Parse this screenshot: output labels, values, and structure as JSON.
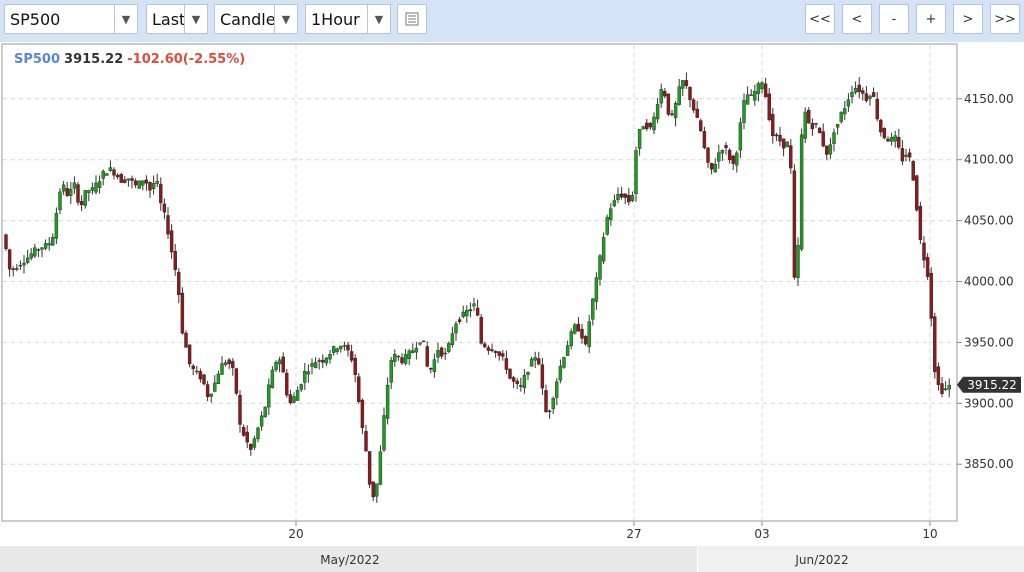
{
  "toolbar": {
    "symbol": "SP500",
    "price_type": "Last",
    "chart_style": "Candle",
    "interval": "1Hour",
    "list_icon": "list-icon",
    "nav": {
      "first": "<<",
      "prev": "<",
      "zoom_out": "-",
      "zoom_in": "+",
      "next": ">",
      "last": ">>"
    }
  },
  "header": {
    "symbol": "SP500",
    "last": "3915.22",
    "change": "-102.60(-2.55%)"
  },
  "colors": {
    "up": "#1e9e1e",
    "down": "#8b1a1a",
    "symbol": "#5a86d8",
    "change": "#e04b3a",
    "grid": "#d6d6d6",
    "band": "#e8e8e8"
  },
  "chart_data": {
    "type": "candlestick",
    "x_ticks": [
      "20",
      "27",
      "03",
      "10"
    ],
    "x_periods": [
      "May/2022",
      "Jun/2022"
    ],
    "y_ticks": [
      "3850.00",
      "3900.00",
      "3950.00",
      "4000.00",
      "4050.00",
      "4100.00",
      "4150.00"
    ],
    "y_tick_values": [
      3850,
      3900,
      3950,
      4000,
      4050,
      4100,
      4150
    ],
    "ylim": [
      3805,
      4195
    ],
    "last_price_label": "3915.22",
    "last_price": 3915.22,
    "path": [
      [
        0,
        4035
      ],
      [
        6,
        4040
      ],
      [
        10,
        4010
      ],
      [
        16,
        4010
      ],
      [
        22,
        4015
      ],
      [
        30,
        4020
      ],
      [
        36,
        4025
      ],
      [
        42,
        4028
      ],
      [
        50,
        4030
      ],
      [
        56,
        4040
      ],
      [
        60,
        4070
      ],
      [
        64,
        4080
      ],
      [
        70,
        4070
      ],
      [
        76,
        4080
      ],
      [
        82,
        4060
      ],
      [
        88,
        4075
      ],
      [
        94,
        4075
      ],
      [
        100,
        4082
      ],
      [
        106,
        4090
      ],
      [
        112,
        4092
      ],
      [
        118,
        4088
      ],
      [
        124,
        4082
      ],
      [
        130,
        4085
      ],
      [
        138,
        4078
      ],
      [
        146,
        4085
      ],
      [
        152,
        4075
      ],
      [
        158,
        4085
      ],
      [
        162,
        4065
      ],
      [
        168,
        4050
      ],
      [
        172,
        4030
      ],
      [
        176,
        4015
      ],
      [
        180,
        3995
      ],
      [
        184,
        3960
      ],
      [
        188,
        3945
      ],
      [
        192,
        3930
      ],
      [
        198,
        3925
      ],
      [
        204,
        3920
      ],
      [
        210,
        3905
      ],
      [
        216,
        3915
      ],
      [
        222,
        3930
      ],
      [
        228,
        3935
      ],
      [
        234,
        3930
      ],
      [
        238,
        3910
      ],
      [
        242,
        3880
      ],
      [
        248,
        3870
      ],
      [
        252,
        3860
      ],
      [
        258,
        3875
      ],
      [
        264,
        3890
      ],
      [
        268,
        3900
      ],
      [
        272,
        3920
      ],
      [
        276,
        3930
      ],
      [
        280,
        3940
      ],
      [
        284,
        3930
      ],
      [
        288,
        3910
      ],
      [
        292,
        3900
      ],
      [
        296,
        3905
      ],
      [
        302,
        3915
      ],
      [
        306,
        3925
      ],
      [
        312,
        3930
      ],
      [
        318,
        3935
      ],
      [
        324,
        3935
      ],
      [
        330,
        3940
      ],
      [
        336,
        3945
      ],
      [
        342,
        3948
      ],
      [
        348,
        3945
      ],
      [
        352,
        3940
      ],
      [
        356,
        3930
      ],
      [
        360,
        3905
      ],
      [
        364,
        3880
      ],
      [
        368,
        3860
      ],
      [
        372,
        3830
      ],
      [
        376,
        3822
      ],
      [
        380,
        3840
      ],
      [
        384,
        3875
      ],
      [
        388,
        3905
      ],
      [
        392,
        3935
      ],
      [
        398,
        3940
      ],
      [
        404,
        3935
      ],
      [
        410,
        3940
      ],
      [
        416,
        3945
      ],
      [
        420,
        3950
      ],
      [
        424,
        3955
      ],
      [
        430,
        3925
      ],
      [
        434,
        3930
      ],
      [
        440,
        3945
      ],
      [
        446,
        3938
      ],
      [
        452,
        3950
      ],
      [
        456,
        3965
      ],
      [
        462,
        3970
      ],
      [
        468,
        3975
      ],
      [
        472,
        3978
      ],
      [
        478,
        3982
      ],
      [
        482,
        3950
      ],
      [
        486,
        3948
      ],
      [
        490,
        3945
      ],
      [
        496,
        3945
      ],
      [
        500,
        3940
      ],
      [
        506,
        3935
      ],
      [
        512,
        3920
      ],
      [
        518,
        3915
      ],
      [
        522,
        3912
      ],
      [
        528,
        3925
      ],
      [
        534,
        3935
      ],
      [
        538,
        3940
      ],
      [
        542,
        3930
      ],
      [
        546,
        3895
      ],
      [
        550,
        3890
      ],
      [
        556,
        3910
      ],
      [
        562,
        3930
      ],
      [
        568,
        3945
      ],
      [
        572,
        3955
      ],
      [
        578,
        3965
      ],
      [
        584,
        3955
      ],
      [
        588,
        3945
      ],
      [
        592,
        3975
      ],
      [
        596,
        3990
      ],
      [
        600,
        4010
      ],
      [
        604,
        4030
      ],
      [
        608,
        4050
      ],
      [
        612,
        4060
      ],
      [
        616,
        4065
      ],
      [
        620,
        4072
      ],
      [
        626,
        4070
      ],
      [
        630,
        4065
      ],
      [
        634,
        4070
      ],
      [
        638,
        4110
      ],
      [
        642,
        4125
      ],
      [
        646,
        4130
      ],
      [
        652,
        4125
      ],
      [
        656,
        4135
      ],
      [
        660,
        4150
      ],
      [
        664,
        4160
      ],
      [
        668,
        4150
      ],
      [
        672,
        4130
      ],
      [
        676,
        4140
      ],
      [
        680,
        4155
      ],
      [
        684,
        4165
      ],
      [
        688,
        4160
      ],
      [
        692,
        4150
      ],
      [
        696,
        4140
      ],
      [
        700,
        4130
      ],
      [
        704,
        4120
      ],
      [
        708,
        4100
      ],
      [
        712,
        4090
      ],
      [
        716,
        4095
      ],
      [
        720,
        4105
      ],
      [
        724,
        4110
      ],
      [
        728,
        4108
      ],
      [
        732,
        4100
      ],
      [
        736,
        4095
      ],
      [
        740,
        4115
      ],
      [
        744,
        4140
      ],
      [
        748,
        4155
      ],
      [
        752,
        4150
      ],
      [
        756,
        4155
      ],
      [
        760,
        4160
      ],
      [
        764,
        4165
      ],
      [
        768,
        4150
      ],
      [
        772,
        4130
      ],
      [
        776,
        4115
      ],
      [
        780,
        4120
      ],
      [
        784,
        4110
      ],
      [
        788,
        4115
      ],
      [
        792,
        4108
      ],
      [
        796,
        4000
      ],
      [
        800,
        4030
      ],
      [
        804,
        4135
      ],
      [
        808,
        4140
      ],
      [
        812,
        4125
      ],
      [
        816,
        4130
      ],
      [
        820,
        4125
      ],
      [
        824,
        4115
      ],
      [
        828,
        4105
      ],
      [
        832,
        4110
      ],
      [
        836,
        4125
      ],
      [
        840,
        4130
      ],
      [
        844,
        4140
      ],
      [
        848,
        4145
      ],
      [
        852,
        4155
      ],
      [
        856,
        4160
      ],
      [
        860,
        4158
      ],
      [
        864,
        4155
      ],
      [
        868,
        4150
      ],
      [
        872,
        4155
      ],
      [
        876,
        4150
      ],
      [
        880,
        4130
      ],
      [
        884,
        4120
      ],
      [
        888,
        4118
      ],
      [
        892,
        4115
      ],
      [
        896,
        4120
      ],
      [
        900,
        4110
      ],
      [
        904,
        4100
      ],
      [
        908,
        4105
      ],
      [
        912,
        4100
      ],
      [
        916,
        4080
      ],
      [
        920,
        4050
      ],
      [
        924,
        4020
      ],
      [
        928,
        4018
      ],
      [
        932,
        3985
      ],
      [
        936,
        3930
      ],
      [
        940,
        3915
      ],
      [
        944,
        3910
      ],
      [
        948,
        3912
      ],
      [
        952,
        3915
      ]
    ]
  }
}
